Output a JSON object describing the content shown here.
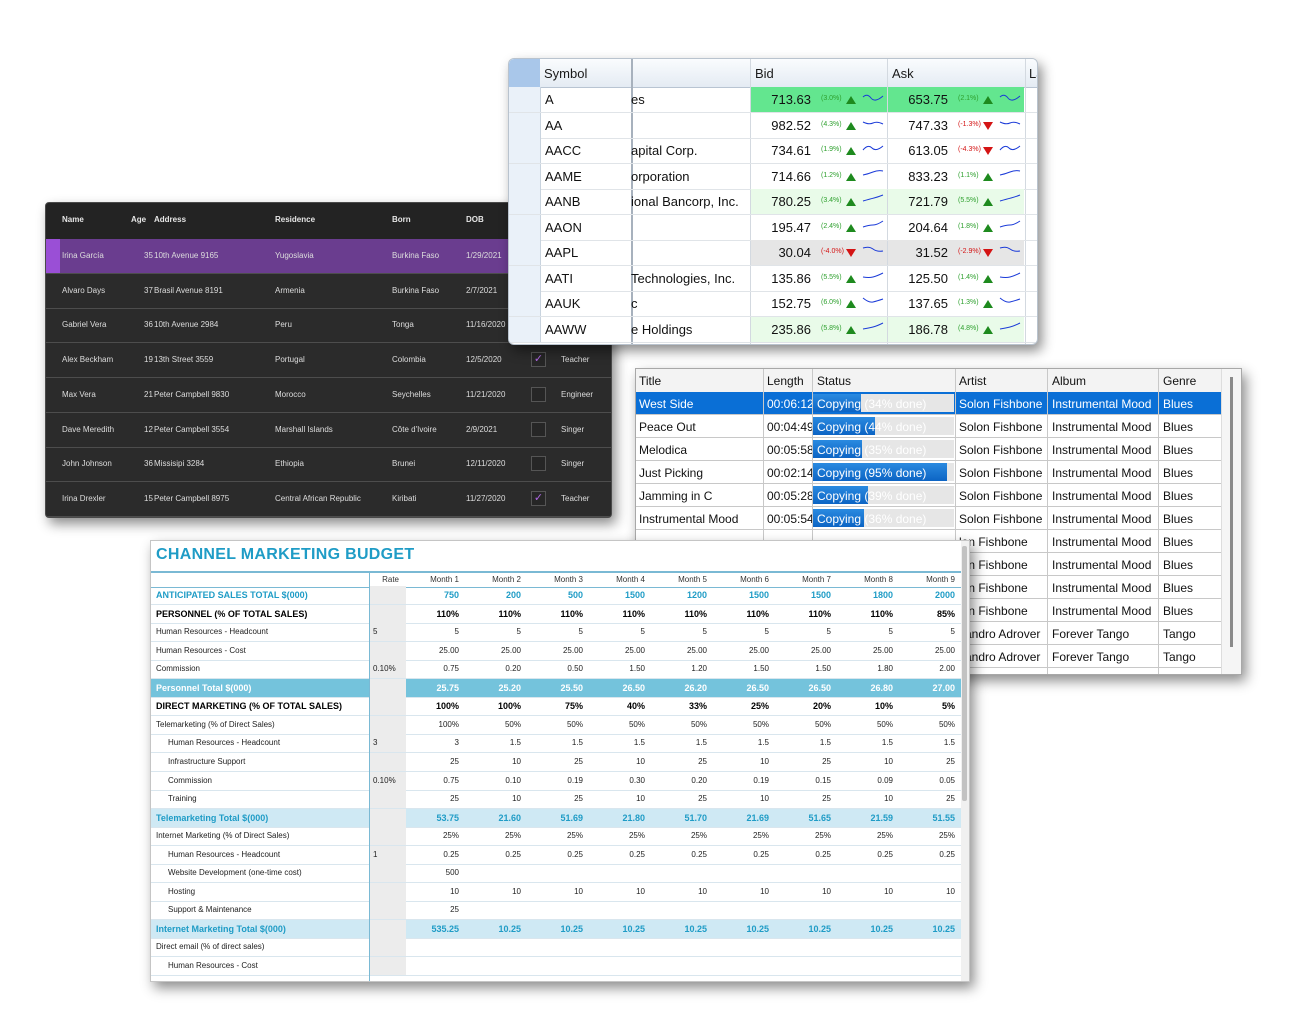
{
  "people_grid": {
    "columns": [
      "Name",
      "Age",
      "Address",
      "Residence",
      "Born",
      "DOB"
    ],
    "rows": [
      {
        "name": "Irina García",
        "age": "35",
        "address": "10th Avenue 9165",
        "residence": "Yugoslavia",
        "born": "Burkina Faso",
        "dob": "1/29/2021",
        "checked": false,
        "role": "",
        "selected": true
      },
      {
        "name": "Alvaro Days",
        "age": "37",
        "address": "Brasil Avenue 8191",
        "residence": "Armenia",
        "born": "Burkina Faso",
        "dob": "2/7/2021",
        "checked": false,
        "role": "",
        "selected": false
      },
      {
        "name": "Gabriel Vera",
        "age": "36",
        "address": "10th Avenue 2984",
        "residence": "Peru",
        "born": "Tonga",
        "dob": "11/16/2020",
        "checked": false,
        "role": "",
        "selected": false
      },
      {
        "name": "Alex Beckham",
        "age": "19",
        "address": "13th Street 3559",
        "residence": "Portugal",
        "born": "Colombia",
        "dob": "12/5/2020",
        "checked": true,
        "role": "Teacher",
        "selected": false
      },
      {
        "name": "Max Vera",
        "age": "21",
        "address": "Peter Campbell 9830",
        "residence": "Morocco",
        "born": "Seychelles",
        "dob": "11/21/2020",
        "checked": false,
        "role": "Engineer",
        "selected": false
      },
      {
        "name": "Dave Meredith",
        "age": "12",
        "address": "Peter Campbell 3554",
        "residence": "Marshall Islands",
        "born": "Côte d'Ivoire",
        "dob": "2/9/2021",
        "checked": false,
        "role": "Singer",
        "selected": false
      },
      {
        "name": "John Johnson",
        "age": "36",
        "address": "Missisipi 3284",
        "residence": "Ethiopia",
        "born": "Brunei",
        "dob": "12/11/2020",
        "checked": false,
        "role": "Singer",
        "selected": false
      },
      {
        "name": "Irina Drexler",
        "age": "15",
        "address": "Peter Campbell 8975",
        "residence": "Central African Republic",
        "born": "Kiribati",
        "dob": "11/27/2020",
        "checked": true,
        "role": "Teacher",
        "selected": false
      }
    ]
  },
  "stock_grid": {
    "columns": [
      "Symbol",
      "Bid",
      "Ask",
      "La"
    ],
    "rows": [
      {
        "symbol": "A",
        "name": "es",
        "bid": "713.63",
        "bid_pct": "(3.0%)",
        "bid_dir": "up",
        "ask": "653.75",
        "ask_pct": "(2.1%)",
        "ask_dir": "up",
        "highlight": "strong"
      },
      {
        "symbol": "AA",
        "name": "",
        "bid": "982.52",
        "bid_pct": "(4.3%)",
        "bid_dir": "up",
        "ask": "747.33",
        "ask_pct": "(-1.3%)",
        "ask_dir": "down",
        "highlight": ""
      },
      {
        "symbol": "AACC",
        "name": "apital Corp.",
        "bid": "734.61",
        "bid_pct": "(1.9%)",
        "bid_dir": "up",
        "ask": "613.05",
        "ask_pct": "(-4.3%)",
        "ask_dir": "down",
        "highlight": ""
      },
      {
        "symbol": "AAME",
        "name": "orporation",
        "bid": "714.66",
        "bid_pct": "(1.2%)",
        "bid_dir": "up",
        "ask": "833.23",
        "ask_pct": "(1.1%)",
        "ask_dir": "up",
        "highlight": ""
      },
      {
        "symbol": "AANB",
        "name": "ional Bancorp, Inc.",
        "bid": "780.25",
        "bid_pct": "(3.4%)",
        "bid_dir": "up",
        "ask": "721.79",
        "ask_pct": "(5.5%)",
        "ask_dir": "up",
        "highlight": "light"
      },
      {
        "symbol": "AAON",
        "name": "",
        "bid": "195.47",
        "bid_pct": "(2.4%)",
        "bid_dir": "up",
        "ask": "204.64",
        "ask_pct": "(1.8%)",
        "ask_dir": "up",
        "highlight": ""
      },
      {
        "symbol": "AAPL",
        "name": "",
        "bid": "30.04",
        "bid_pct": "(-4.0%)",
        "bid_dir": "down",
        "ask": "31.52",
        "ask_pct": "(-2.9%)",
        "ask_dir": "down",
        "highlight": "gray"
      },
      {
        "symbol": "AATI",
        "name": "Technologies, Inc.",
        "bid": "135.86",
        "bid_pct": "(5.5%)",
        "bid_dir": "up",
        "ask": "125.50",
        "ask_pct": "(1.4%)",
        "ask_dir": "up",
        "highlight": ""
      },
      {
        "symbol": "AAUK",
        "name": "c",
        "bid": "152.75",
        "bid_pct": "(6.0%)",
        "bid_dir": "up",
        "ask": "137.65",
        "ask_pct": "(1.3%)",
        "ask_dir": "up",
        "highlight": ""
      },
      {
        "symbol": "AAWW",
        "name": "e Holdings",
        "bid": "235.86",
        "bid_pct": "(5.8%)",
        "bid_dir": "up",
        "ask": "186.78",
        "ask_pct": "(4.8%)",
        "ask_dir": "up",
        "highlight": "light"
      }
    ]
  },
  "music_grid": {
    "columns": [
      "Title",
      "Length",
      "Status",
      "Artist",
      "Album",
      "Genre"
    ],
    "rows": [
      {
        "title": "West Side",
        "length": "00:06:12",
        "status": "Copying (34% done)",
        "progress": 0.34,
        "artist": "Solon Fishbone",
        "album": "Instrumental Mood",
        "genre": "Blues",
        "selected": true
      },
      {
        "title": "Peace Out",
        "length": "00:04:49",
        "status": "Copying (44% done)",
        "progress": 0.44,
        "artist": "Solon Fishbone",
        "album": "Instrumental Mood",
        "genre": "Blues",
        "selected": false
      },
      {
        "title": "Melodica",
        "length": "00:05:58",
        "status": "Copying (35% done)",
        "progress": 0.35,
        "artist": "Solon Fishbone",
        "album": "Instrumental Mood",
        "genre": "Blues",
        "selected": false
      },
      {
        "title": "Just Picking",
        "length": "00:02:14",
        "status": "Copying (95% done)",
        "progress": 0.95,
        "artist": "Solon Fishbone",
        "album": "Instrumental Mood",
        "genre": "Blues",
        "selected": false
      },
      {
        "title": "Jamming in C",
        "length": "00:05:28",
        "status": "Copying (39% done)",
        "progress": 0.39,
        "artist": "Solon Fishbone",
        "album": "Instrumental Mood",
        "genre": "Blues",
        "selected": false
      },
      {
        "title": "Instrumental Mood",
        "length": "00:05:54",
        "status": "Copying (36% done)",
        "progress": 0.36,
        "artist": "Solon Fishbone",
        "album": "Instrumental Mood",
        "genre": "Blues",
        "selected": false
      },
      {
        "title": "",
        "length": "",
        "status": "",
        "progress": 0,
        "artist": "lon Fishbone",
        "album": "Instrumental Mood",
        "genre": "Blues",
        "selected": false
      },
      {
        "title": "",
        "length": "",
        "status": "",
        "progress": 0,
        "artist": "lon Fishbone",
        "album": "Instrumental Mood",
        "genre": "Blues",
        "selected": false
      },
      {
        "title": "",
        "length": "",
        "status": "",
        "progress": 0,
        "artist": "lon Fishbone",
        "album": "Instrumental Mood",
        "genre": "Blues",
        "selected": false
      },
      {
        "title": "",
        "length": "",
        "status": "",
        "progress": 0,
        "artist": "lon Fishbone",
        "album": "Instrumental Mood",
        "genre": "Blues",
        "selected": false
      },
      {
        "title": "",
        "length": "",
        "status": "",
        "progress": 0,
        "artist": "sandro Adrover",
        "album": "Forever Tango",
        "genre": "Tango",
        "selected": false
      },
      {
        "title": "",
        "length": "",
        "status": "",
        "progress": 0,
        "artist": "sandro Adrover",
        "album": "Forever Tango",
        "genre": "Tango",
        "selected": false
      }
    ]
  },
  "budget_sheet": {
    "title": "CHANNEL MARKETING BUDGET",
    "columns": [
      "Rate",
      "Month 1",
      "Month 2",
      "Month 3",
      "Month 4",
      "Month 5",
      "Month 6",
      "Month 7",
      "Month 8",
      "Month 9"
    ],
    "rows": [
      {
        "label": "ANTICIPATED SALES TOTAL $(000)",
        "style": "title",
        "indent": 0,
        "rate": "",
        "values": [
          "750",
          "200",
          "500",
          "1500",
          "1200",
          "1500",
          "1500",
          "1800",
          "2000"
        ]
      },
      {
        "label": "PERSONNEL (% OF TOTAL SALES)",
        "style": "section",
        "indent": 0,
        "rate": "",
        "values": [
          "110%",
          "110%",
          "110%",
          "110%",
          "110%",
          "110%",
          "110%",
          "110%",
          "85%"
        ]
      },
      {
        "label": "Human Resources - Headcount",
        "style": "",
        "indent": 0,
        "rate": "5",
        "values": [
          "5",
          "5",
          "5",
          "5",
          "5",
          "5",
          "5",
          "5",
          "5"
        ]
      },
      {
        "label": "Human Resources - Cost",
        "style": "",
        "indent": 0,
        "rate": "",
        "values": [
          "25.00",
          "25.00",
          "25.00",
          "25.00",
          "25.00",
          "25.00",
          "25.00",
          "25.00",
          "25.00"
        ]
      },
      {
        "label": "Commission",
        "style": "",
        "indent": 0,
        "rate": "0.10%",
        "values": [
          "0.75",
          "0.20",
          "0.50",
          "1.50",
          "1.20",
          "1.50",
          "1.50",
          "1.80",
          "2.00"
        ]
      },
      {
        "label": "Personnel Total $(000)",
        "style": "hl",
        "indent": 0,
        "rate": "",
        "values": [
          "25.75",
          "25.20",
          "25.50",
          "26.50",
          "26.20",
          "26.50",
          "26.50",
          "26.80",
          "27.00"
        ]
      },
      {
        "label": "DIRECT MARKETING (% OF TOTAL SALES)",
        "style": "section",
        "indent": 0,
        "rate": "",
        "values": [
          "100%",
          "100%",
          "75%",
          "40%",
          "33%",
          "25%",
          "20%",
          "10%",
          "5%"
        ]
      },
      {
        "label": "Telemarketing (% of Direct Sales)",
        "style": "",
        "indent": 0,
        "rate": "",
        "values": [
          "100%",
          "50%",
          "50%",
          "50%",
          "50%",
          "50%",
          "50%",
          "50%",
          "50%"
        ]
      },
      {
        "label": "Human Resources - Headcount",
        "style": "",
        "indent": 1,
        "rate": "3",
        "values": [
          "3",
          "1.5",
          "1.5",
          "1.5",
          "1.5",
          "1.5",
          "1.5",
          "1.5",
          "1.5"
        ]
      },
      {
        "label": "Infrastructure Support",
        "style": "",
        "indent": 1,
        "rate": "",
        "values": [
          "25",
          "10",
          "25",
          "10",
          "25",
          "10",
          "25",
          "10",
          "25"
        ]
      },
      {
        "label": "Commission",
        "style": "",
        "indent": 1,
        "rate": "0.10%",
        "values": [
          "0.75",
          "0.10",
          "0.19",
          "0.30",
          "0.20",
          "0.19",
          "0.15",
          "0.09",
          "0.05"
        ]
      },
      {
        "label": "Training",
        "style": "",
        "indent": 1,
        "rate": "",
        "values": [
          "25",
          "10",
          "25",
          "10",
          "25",
          "10",
          "25",
          "10",
          "25"
        ]
      },
      {
        "label": "Telemarketing Total $(000)",
        "style": "tot",
        "indent": 0,
        "rate": "",
        "values": [
          "53.75",
          "21.60",
          "51.69",
          "21.80",
          "51.70",
          "21.69",
          "51.65",
          "21.59",
          "51.55"
        ]
      },
      {
        "label": "Internet Marketing (% of Direct Sales)",
        "style": "",
        "indent": 0,
        "rate": "",
        "values": [
          "25%",
          "25%",
          "25%",
          "25%",
          "25%",
          "25%",
          "25%",
          "25%",
          "25%"
        ]
      },
      {
        "label": "Human Resources - Headcount",
        "style": "",
        "indent": 1,
        "rate": "1",
        "values": [
          "0.25",
          "0.25",
          "0.25",
          "0.25",
          "0.25",
          "0.25",
          "0.25",
          "0.25",
          "0.25"
        ]
      },
      {
        "label": "Website Development (one-time cost)",
        "style": "",
        "indent": 1,
        "rate": "",
        "values": [
          "500",
          "",
          "",
          "",
          "",
          "",
          "",
          "",
          ""
        ]
      },
      {
        "label": "Hosting",
        "style": "",
        "indent": 1,
        "rate": "",
        "values": [
          "10",
          "10",
          "10",
          "10",
          "10",
          "10",
          "10",
          "10",
          "10"
        ]
      },
      {
        "label": "Support & Maintenance",
        "style": "",
        "indent": 1,
        "rate": "",
        "values": [
          "25",
          "",
          "",
          "",
          "",
          "",
          "",
          "",
          ""
        ]
      },
      {
        "label": "Internet Marketing Total $(000)",
        "style": "tot",
        "indent": 0,
        "rate": "",
        "values": [
          "535.25",
          "10.25",
          "10.25",
          "10.25",
          "10.25",
          "10.25",
          "10.25",
          "10.25",
          "10.25"
        ]
      },
      {
        "label": "Direct email (% of direct sales)",
        "style": "",
        "indent": 0,
        "rate": "",
        "values": [
          "",
          "",
          "",
          "",
          "",
          "",
          "",
          "",
          ""
        ]
      },
      {
        "label": "Human Resources - Cost",
        "style": "",
        "indent": 1,
        "rate": "",
        "values": [
          "",
          "",
          "",
          "",
          "",
          "",
          "",
          "",
          ""
        ]
      }
    ]
  },
  "colors": {
    "dark_selected": "#6a3d8f",
    "stock_up_strong": "#63e68f",
    "stock_up_light": "#e9fbe9",
    "music_selected": "#0a6fd6",
    "budget_accent": "#1f9cc6"
  }
}
